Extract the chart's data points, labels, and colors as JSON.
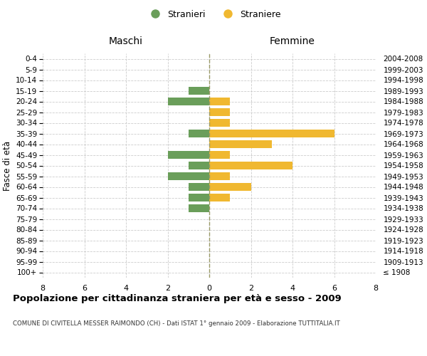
{
  "age_groups": [
    "100+",
    "95-99",
    "90-94",
    "85-89",
    "80-84",
    "75-79",
    "70-74",
    "65-69",
    "60-64",
    "55-59",
    "50-54",
    "45-49",
    "40-44",
    "35-39",
    "30-34",
    "25-29",
    "20-24",
    "15-19",
    "10-14",
    "5-9",
    "0-4"
  ],
  "birth_years": [
    "≤ 1908",
    "1909-1913",
    "1914-1918",
    "1919-1923",
    "1924-1928",
    "1929-1933",
    "1934-1938",
    "1939-1943",
    "1944-1948",
    "1949-1953",
    "1954-1958",
    "1959-1963",
    "1964-1968",
    "1969-1973",
    "1974-1978",
    "1979-1983",
    "1984-1988",
    "1989-1993",
    "1994-1998",
    "1999-2003",
    "2004-2008"
  ],
  "stranieri": [
    0,
    0,
    0,
    0,
    0,
    0,
    1,
    1,
    1,
    2,
    1,
    2,
    0,
    1,
    0,
    0,
    2,
    1,
    0,
    0,
    0
  ],
  "straniere": [
    0,
    0,
    0,
    0,
    0,
    0,
    0,
    1,
    2,
    1,
    4,
    1,
    3,
    6,
    1,
    1,
    1,
    0,
    0,
    0,
    0
  ],
  "color_stranieri": "#6a9e5a",
  "color_straniere": "#f0b830",
  "xlim": 8,
  "title": "Popolazione per cittadinanza straniera per età e sesso - 2009",
  "subtitle": "COMUNE DI CIVITELLA MESSER RAIMONDO (CH) - Dati ISTAT 1° gennaio 2009 - Elaborazione TUTTITALIA.IT",
  "left_header": "Maschi",
  "right_header": "Femmine",
  "left_yaxis_label": "Fasce di età",
  "legend_stranieri": "Stranieri",
  "legend_straniere": "Straniere",
  "bar_height": 0.75,
  "background_color": "#ffffff",
  "grid_color": "#cccccc"
}
